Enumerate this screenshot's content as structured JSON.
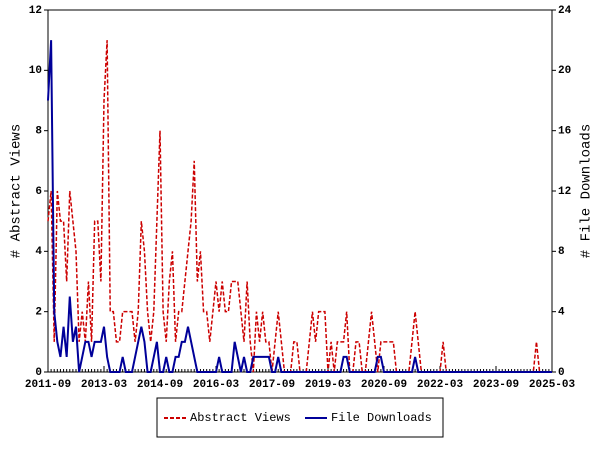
{
  "chart_data": {
    "type": "line",
    "ylabel": "# Abstract Views",
    "y2label": "# File Downloads",
    "categories": [
      "2011-09",
      null,
      null,
      null,
      null,
      null,
      null,
      null,
      null,
      null,
      null,
      null,
      null,
      null,
      null,
      null,
      null,
      null,
      "2013-03",
      null,
      null,
      null,
      null,
      null,
      null,
      null,
      null,
      null,
      null,
      null,
      null,
      null,
      null,
      null,
      null,
      null,
      "2014-09",
      null,
      null,
      null,
      null,
      null,
      null,
      null,
      null,
      null,
      null,
      null,
      null,
      null,
      null,
      null,
      null,
      null,
      "2016-03",
      null,
      null,
      null,
      null,
      null,
      null,
      null,
      null,
      null,
      null,
      null,
      null,
      null,
      null,
      null,
      null,
      null,
      "2017-09",
      null,
      null,
      null,
      null,
      null,
      null,
      null,
      null,
      null,
      null,
      null,
      null,
      null,
      null,
      null,
      null,
      null,
      "2019-03",
      null,
      null,
      null,
      null,
      null,
      null,
      null,
      null,
      null,
      null,
      null,
      null,
      null,
      null,
      null,
      null,
      null,
      "2020-09",
      null,
      null,
      null,
      null,
      null,
      null,
      null,
      null,
      null,
      null,
      null,
      null,
      null,
      null,
      null,
      null,
      null,
      "2022-03",
      null,
      null,
      null,
      null,
      null,
      null,
      null,
      null,
      null,
      null,
      null,
      null,
      null,
      null,
      null,
      null,
      null,
      "2023-09",
      null,
      null,
      null,
      null,
      null,
      null,
      null,
      null,
      null,
      null,
      null,
      null,
      null,
      null,
      null,
      null,
      null,
      "2025-03"
    ],
    "series": [
      {
        "name": "Abstract Views",
        "color": "#cc0000",
        "dash": true,
        "values": [
          5,
          6,
          1,
          6,
          5,
          5,
          3,
          6,
          5,
          4,
          1,
          2,
          1,
          3,
          1,
          5,
          5,
          3,
          9,
          11,
          2,
          2,
          1,
          1,
          2,
          2,
          2,
          2,
          1,
          2,
          5,
          4,
          2,
          1,
          2,
          5,
          8,
          2,
          1,
          3,
          4,
          1,
          2,
          2,
          3,
          4,
          5,
          7,
          3,
          4,
          2,
          2,
          1,
          2,
          3,
          2,
          3,
          2,
          2,
          3,
          3,
          3,
          2,
          1,
          3,
          1,
          0,
          2,
          1,
          2,
          1,
          1,
          0,
          1,
          2,
          1,
          0,
          0,
          0,
          1,
          1,
          0,
          0,
          0,
          1,
          2,
          1,
          2,
          2,
          2,
          0,
          1,
          0,
          1,
          1,
          1,
          2,
          0,
          0,
          1,
          1,
          0,
          0,
          1,
          2,
          1,
          0,
          1,
          1,
          1,
          1,
          1,
          0,
          0,
          0,
          0,
          0,
          1,
          2,
          1,
          0,
          0,
          0,
          0,
          0,
          0,
          0,
          1,
          0,
          0,
          0,
          0,
          0,
          0,
          0,
          0,
          0,
          0,
          0,
          0,
          0,
          0,
          0,
          0,
          0,
          0,
          0,
          0,
          0,
          0,
          0,
          0,
          0,
          0,
          0,
          0,
          0,
          1,
          0,
          0,
          0,
          0,
          0
        ]
      },
      {
        "name": "File Downloads",
        "color": "#000099",
        "axis": "y2",
        "values": [
          18,
          22,
          4,
          2,
          1,
          3,
          1,
          5,
          2,
          3,
          0,
          1,
          2,
          2,
          1,
          2,
          2,
          2,
          3,
          1,
          0,
          0,
          0,
          0,
          1,
          0,
          0,
          0,
          1,
          2,
          3,
          2,
          0,
          0,
          1,
          2,
          0,
          0,
          1,
          0,
          0,
          1,
          1,
          2,
          2,
          3,
          2,
          1,
          0,
          0,
          0,
          0,
          0,
          0,
          0,
          1,
          0,
          0,
          0,
          0,
          2,
          1,
          0,
          1,
          0,
          0,
          1,
          1,
          1,
          1,
          1,
          1,
          0,
          0,
          1,
          0,
          0,
          0,
          0,
          0,
          0,
          0,
          0,
          0,
          0,
          0,
          0,
          0,
          0,
          0,
          0,
          0,
          0,
          0,
          0,
          1,
          1,
          0,
          0,
          0,
          0,
          0,
          0,
          0,
          0,
          0,
          1,
          1,
          0,
          0,
          0,
          0,
          0,
          0,
          0,
          0,
          0,
          0,
          1,
          0,
          0,
          0,
          0,
          0,
          0,
          0,
          0,
          0,
          0,
          0,
          0,
          0,
          0,
          0,
          0,
          0,
          0,
          0,
          0,
          0,
          0,
          0,
          0,
          0,
          0,
          0,
          0,
          0,
          0,
          0,
          0,
          0,
          0,
          0,
          0,
          0,
          0,
          0,
          0,
          0,
          0,
          0,
          0
        ]
      }
    ],
    "ylim": [
      0,
      12
    ],
    "yticks": [
      0,
      2,
      4,
      6,
      8,
      10,
      12
    ],
    "y2lim": [
      0,
      24
    ],
    "y2ticks": [
      0,
      4,
      8,
      12,
      16,
      20,
      24
    ]
  }
}
